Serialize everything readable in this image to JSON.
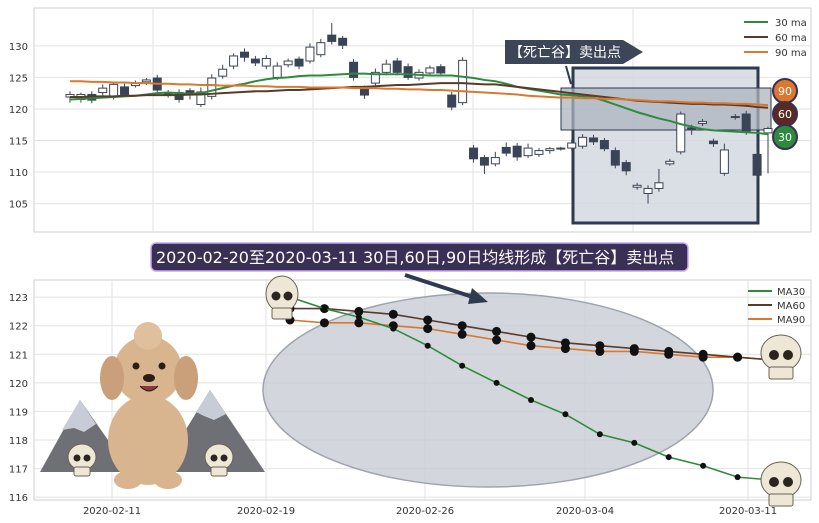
{
  "colors": {
    "ma30": "#2e8b3e",
    "ma60": "#5a3a2a",
    "ma90": "#d9782e",
    "candle_down": "#3b4456",
    "candle_up_fill": "#ffffff",
    "candle_edge": "#3b4456",
    "banner_bg": "#3d4558",
    "caption_bg": "#3a2f55",
    "caption_border": "#c9a7f0",
    "box_edge": "#2e3a4f"
  },
  "icons": [
    "skull-icon",
    "poodle-icon",
    "mountain-icon",
    "arrow-icon"
  ],
  "top_banner": "【死亡谷】卖出点",
  "caption": "2020-02-20至2020-03-11 30日,60日,90日均线形成【死亡谷】卖出点",
  "badges": [
    "90",
    "60",
    "30"
  ],
  "chart_data": [
    {
      "type": "candlestick",
      "ylim": [
        100.5,
        136
      ],
      "yticks": [
        105,
        110,
        115,
        120,
        125,
        130
      ],
      "grid": true,
      "legend": {
        "position": "top-right",
        "entries": [
          "30 ma",
          "60 ma",
          "90 ma"
        ]
      },
      "candles": [
        [
          121.9,
          122.3,
          121.0,
          122.8
        ],
        [
          121.5,
          122.3,
          121.0,
          122.6
        ],
        [
          122.3,
          121.4,
          120.9,
          122.8
        ],
        [
          122.6,
          123.3,
          122.1,
          123.9
        ],
        [
          121.9,
          123.9,
          121.5,
          124.3
        ],
        [
          123.5,
          122.3,
          122.0,
          124.0
        ],
        [
          123.7,
          124.1,
          123.4,
          124.5
        ],
        [
          124.3,
          124.6,
          123.8,
          124.9
        ],
        [
          124.9,
          123.0,
          122.5,
          125.4
        ],
        [
          122.5,
          122.3,
          121.8,
          123.0
        ],
        [
          122.6,
          121.5,
          121.0,
          123.1
        ],
        [
          122.9,
          122.2,
          121.5,
          123.3
        ],
        [
          120.7,
          122.7,
          120.3,
          123.4
        ],
        [
          122.0,
          124.9,
          121.5,
          125.5
        ],
        [
          125.2,
          126.3,
          124.8,
          127.0
        ],
        [
          126.8,
          128.4,
          126.3,
          128.8
        ],
        [
          129.0,
          128.2,
          127.5,
          129.6
        ],
        [
          127.9,
          127.3,
          126.8,
          128.4
        ],
        [
          126.8,
          128.0,
          126.3,
          128.5
        ],
        [
          125.0,
          126.8,
          124.6,
          127.4
        ],
        [
          127.0,
          127.6,
          126.6,
          128.0
        ],
        [
          127.9,
          126.8,
          126.3,
          128.3
        ],
        [
          127.6,
          129.8,
          127.2,
          130.4
        ],
        [
          128.6,
          130.5,
          128.2,
          131.1
        ],
        [
          131.7,
          130.7,
          130.2,
          133.6
        ],
        [
          131.2,
          130.1,
          129.5,
          131.6
        ],
        [
          127.4,
          125.0,
          124.5,
          127.9
        ],
        [
          123.1,
          122.2,
          121.6,
          123.7
        ],
        [
          124.1,
          125.8,
          123.6,
          126.4
        ],
        [
          125.8,
          127.1,
          125.3,
          127.8
        ],
        [
          127.6,
          125.8,
          125.3,
          128.1
        ],
        [
          126.7,
          125.0,
          124.6,
          127.2
        ],
        [
          124.9,
          125.8,
          124.5,
          126.3
        ],
        [
          125.7,
          126.5,
          125.3,
          126.9
        ],
        [
          126.7,
          125.7,
          125.2,
          127.1
        ],
        [
          122.2,
          120.3,
          119.8,
          122.7
        ],
        [
          121.0,
          127.7,
          120.6,
          128.2
        ],
        [
          113.8,
          112.1,
          111.5,
          114.3
        ],
        [
          112.3,
          111.1,
          109.7,
          112.7
        ],
        [
          111.3,
          112.3,
          110.9,
          113.2
        ],
        [
          113.9,
          113.0,
          112.5,
          114.7
        ],
        [
          114.1,
          112.4,
          111.8,
          114.6
        ],
        [
          112.6,
          113.8,
          112.2,
          114.5
        ],
        [
          112.8,
          113.4,
          112.4,
          113.8
        ],
        [
          113.4,
          113.7,
          112.9,
          114.0
        ],
        [
          113.7,
          113.8,
          113.4,
          114.0
        ],
        [
          113.8,
          114.6,
          113.4,
          115.2
        ],
        [
          114.1,
          115.5,
          113.7,
          116.0
        ],
        [
          115.4,
          114.8,
          114.3,
          115.9
        ],
        [
          115.0,
          113.7,
          113.3,
          115.4
        ],
        [
          113.4,
          111.1,
          110.6,
          113.9
        ],
        [
          111.5,
          110.2,
          109.5,
          111.9
        ],
        [
          107.6,
          107.9,
          107.2,
          108.3
        ],
        [
          106.6,
          107.4,
          105.0,
          107.9
        ],
        [
          107.4,
          108.3,
          106.9,
          110.5
        ],
        [
          111.3,
          111.7,
          111.0,
          112.1
        ],
        [
          113.2,
          119.2,
          112.8,
          119.6
        ],
        [
          117.0,
          116.7,
          115.9,
          117.5
        ],
        [
          117.7,
          118.0,
          117.3,
          118.4
        ],
        [
          114.9,
          114.5,
          114.0,
          115.3
        ],
        [
          109.8,
          113.5,
          109.4,
          114.5
        ],
        [
          118.7,
          118.8,
          118.3,
          119.2
        ],
        [
          119.2,
          116.4,
          115.9,
          119.7
        ],
        [
          112.8,
          109.5,
          109.0,
          113.4
        ],
        [
          116.2,
          116.9,
          109.8,
          117.2
        ]
      ],
      "ma30": [
        121.5,
        121.6,
        121.7,
        121.8,
        121.9,
        122.0,
        122.1,
        122.3,
        122.5,
        122.6,
        122.5,
        122.4,
        122.5,
        122.9,
        123.3,
        123.7,
        124.0,
        124.4,
        124.7,
        124.9,
        125.0,
        125.2,
        125.3,
        125.3,
        125.4,
        125.5,
        125.6,
        125.6,
        125.5,
        125.5,
        125.5,
        125.5,
        125.4,
        125.3,
        125.3,
        125.3,
        125.1,
        124.9,
        124.6,
        124.4,
        124.0,
        123.5,
        123.2,
        122.9,
        122.6,
        122.3,
        122.2,
        122.0,
        121.8,
        121.3,
        120.7,
        120.1,
        119.5,
        119.0,
        118.5,
        118.1,
        117.6,
        117.2,
        116.8,
        116.6,
        116.5,
        116.4,
        116.3,
        116.2,
        116.0
      ],
      "ma60": [
        121.9,
        121.9,
        122.0,
        122.0,
        122.0,
        122.1,
        122.1,
        122.2,
        122.2,
        122.2,
        122.2,
        122.3,
        122.3,
        122.4,
        122.5,
        122.6,
        122.7,
        122.8,
        122.8,
        122.9,
        123.0,
        123.0,
        123.1,
        123.2,
        123.3,
        123.4,
        123.5,
        123.5,
        123.6,
        123.7,
        123.8,
        123.8,
        123.9,
        124.0,
        124.1,
        124.1,
        124.1,
        124.0,
        123.9,
        123.9,
        123.7,
        123.5,
        123.3,
        123.1,
        122.9,
        122.7,
        122.5,
        122.3,
        122.1,
        121.9,
        121.7,
        121.5,
        121.3,
        121.2,
        121.1,
        121.0,
        120.9,
        120.8,
        120.8,
        120.7,
        120.7,
        120.6,
        120.5,
        120.3,
        120.2
      ],
      "ma90": [
        124.4,
        124.4,
        124.3,
        124.3,
        124.2,
        124.2,
        124.1,
        124.1,
        124.0,
        124.0,
        123.9,
        123.9,
        123.8,
        123.8,
        123.7,
        123.7,
        123.7,
        123.6,
        123.6,
        123.5,
        123.5,
        123.5,
        123.4,
        123.4,
        123.4,
        123.4,
        123.3,
        123.3,
        123.3,
        123.2,
        123.2,
        123.1,
        123.1,
        123.0,
        123.0,
        122.9,
        122.8,
        122.7,
        122.6,
        122.5,
        122.4,
        122.3,
        122.1,
        122.0,
        121.9,
        121.8,
        121.8,
        121.7,
        121.7,
        121.6,
        121.6,
        121.5,
        121.4,
        121.3,
        121.2,
        121.2,
        121.1,
        121.0,
        121.0,
        120.9,
        120.9,
        120.8,
        120.8,
        120.7,
        120.6
      ]
    },
    {
      "type": "line",
      "x": [
        "2020-02-20",
        "2020-02-21",
        "2020-02-24",
        "2020-02-25",
        "2020-02-26",
        "2020-02-27",
        "2020-02-28",
        "2020-03-02",
        "2020-03-03",
        "2020-03-04",
        "2020-03-05",
        "2020-03-06",
        "2020-03-09",
        "2020-03-10",
        "2020-03-11"
      ],
      "xticks": [
        "2020-02-11",
        "2020-02-19",
        "2020-02-26",
        "2020-03-04",
        "2020-03-11"
      ],
      "ylim": [
        115.9,
        123.6
      ],
      "yticks": [
        116,
        117,
        118,
        119,
        120,
        121,
        122,
        123
      ],
      "grid": true,
      "legend": {
        "position": "top-right"
      },
      "series": [
        {
          "name": "MA30",
          "values": [
            123.0,
            122.6,
            122.3,
            121.9,
            121.3,
            120.6,
            120.0,
            119.4,
            118.9,
            118.2,
            117.9,
            117.4,
            117.1,
            116.7,
            116.6
          ]
        },
        {
          "name": "MA60",
          "values": [
            122.6,
            122.6,
            122.5,
            122.4,
            122.2,
            122.0,
            121.8,
            121.6,
            121.4,
            121.3,
            121.2,
            121.1,
            121.0,
            120.9,
            120.8
          ]
        },
        {
          "name": "MA90",
          "values": [
            122.2,
            122.1,
            122.1,
            122.0,
            121.9,
            121.7,
            121.5,
            121.3,
            121.2,
            121.1,
            121.1,
            121.0,
            120.9,
            120.9,
            120.8
          ]
        }
      ]
    }
  ]
}
